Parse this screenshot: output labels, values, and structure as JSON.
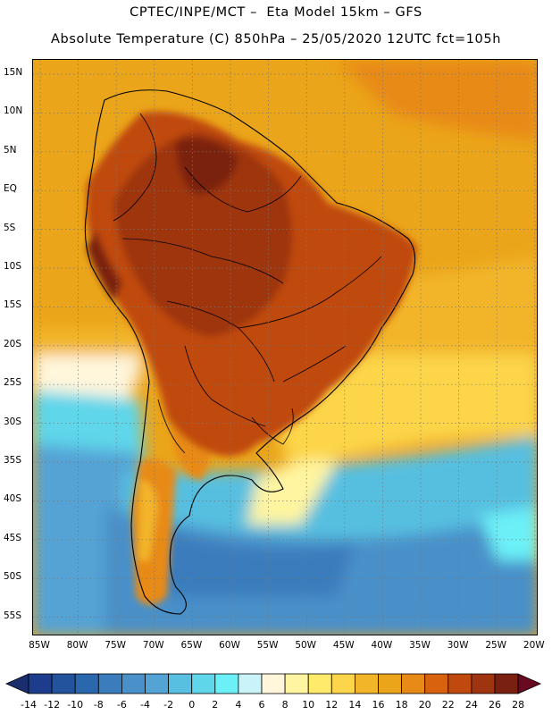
{
  "header": {
    "line1": "CPTEC/INPE/MCT –  Eta Model 15km – GFS",
    "line2": "Absolute Temperature (C) 850hPa – 25/05/2020 12UTC fct=105h"
  },
  "map": {
    "lat_labels": [
      "15N",
      "10N",
      "5N",
      "EQ",
      "5S",
      "10S",
      "15S",
      "20S",
      "25S",
      "30S",
      "35S",
      "40S",
      "45S",
      "50S",
      "55S"
    ],
    "lon_labels": [
      "85W",
      "80W",
      "75W",
      "70W",
      "65W",
      "60W",
      "55W",
      "50W",
      "45W",
      "40W",
      "35W",
      "30W",
      "25W",
      "20W"
    ]
  },
  "colorbar": {
    "labels": [
      "-14",
      "-12",
      "-10",
      "-8",
      "-6",
      "-4",
      "-2",
      "0",
      "2",
      "4",
      "6",
      "8",
      "10",
      "12",
      "14",
      "16",
      "18",
      "20",
      "22",
      "24",
      "26",
      "28"
    ],
    "colors": [
      "#1d3d8c",
      "#24539e",
      "#2b67ad",
      "#3a7cbc",
      "#4a90c9",
      "#54a3d5",
      "#57bfe0",
      "#5fd6ea",
      "#6cf0f8",
      "#c9f3f8",
      "#fff6dc",
      "#fff5a0",
      "#ffea6a",
      "#fcd54a",
      "#f2b52a",
      "#eba51a",
      "#e88a18",
      "#d9620e",
      "#c04a0e",
      "#9e3410",
      "#7a2010"
    ],
    "low_arrow_color": "#1a2e6e",
    "high_arrow_color": "#6a0a20"
  }
}
